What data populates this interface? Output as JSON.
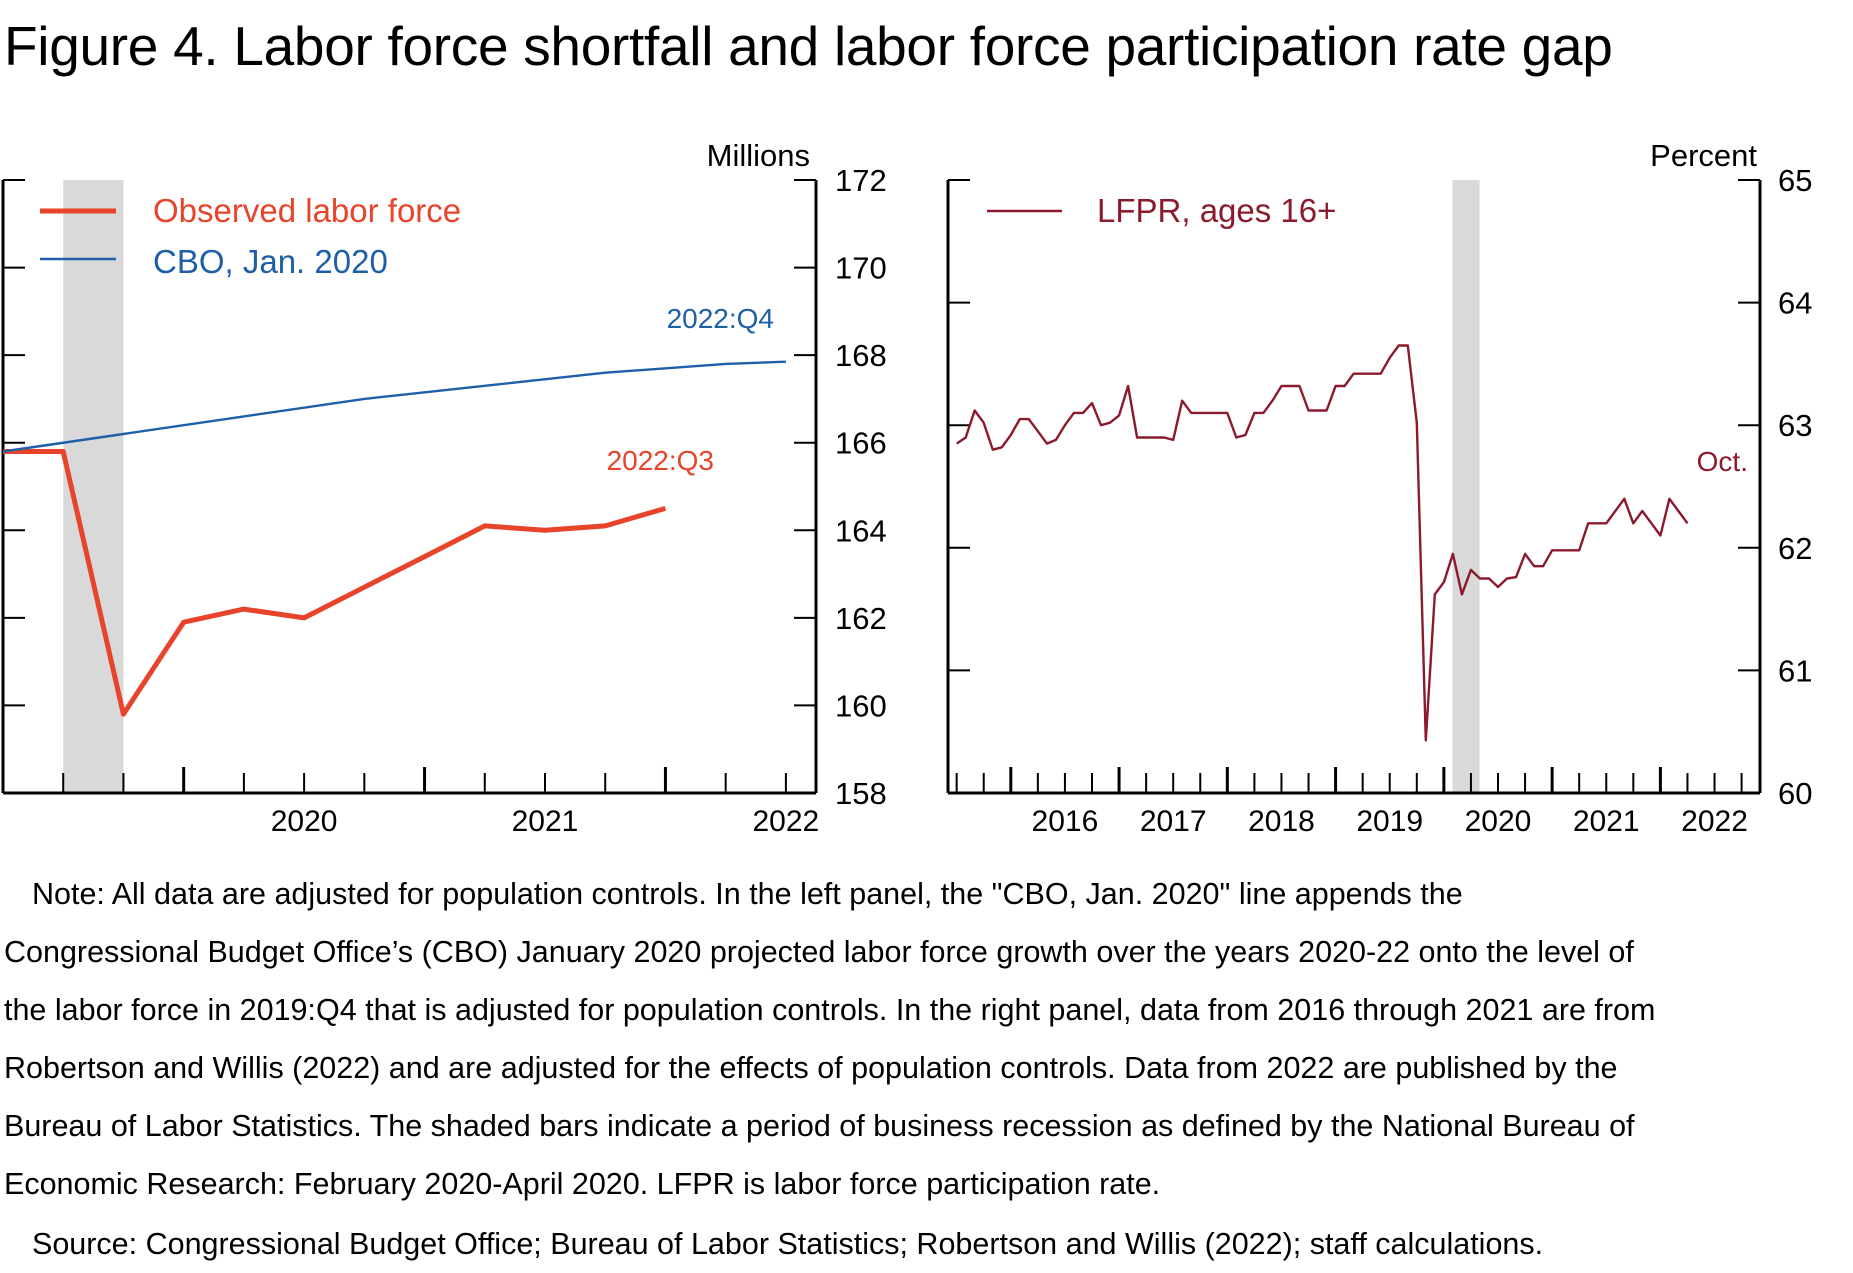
{
  "title": "Figure 4. Labor force shortfall and labor force participation rate gap",
  "chart_data": [
    {
      "type": "line",
      "panel": "left",
      "ylabel": "Millions",
      "ylim": [
        158,
        172
      ],
      "yticks": [
        158,
        160,
        162,
        164,
        166,
        168,
        170,
        172
      ],
      "x_range": [
        2019.25,
        2022.625
      ],
      "xticks": [
        2020,
        2021,
        2022
      ],
      "recession": [
        2019.5,
        2019.75
      ],
      "legend_position": "top-left",
      "series": [
        {
          "name": "Observed labor force",
          "color": "#e8432b",
          "x": [
            2019.25,
            2019.5,
            2019.75,
            2020.0,
            2020.25,
            2020.5,
            2020.75,
            2021.0,
            2021.25,
            2021.5,
            2021.75,
            2022.0
          ],
          "y": [
            165.8,
            165.8,
            159.8,
            161.9,
            162.2,
            162.0,
            162.7,
            163.4,
            164.1,
            164.0,
            164.1,
            164.5
          ]
        },
        {
          "name": "CBO, Jan. 2020",
          "color": "#1f5fa8",
          "x": [
            2019.25,
            2019.75,
            2020.25,
            2020.75,
            2021.25,
            2021.75,
            2022.25,
            2022.5
          ],
          "y": [
            165.8,
            166.2,
            166.6,
            167.0,
            167.3,
            167.6,
            167.8,
            167.85
          ]
        }
      ],
      "annotations": [
        {
          "text": "2022:Q4",
          "series": "CBO, Jan. 2020",
          "color": "#1f5fa8"
        },
        {
          "text": "2022:Q3",
          "series": "Observed labor force",
          "color": "#e8432b"
        }
      ]
    },
    {
      "type": "line",
      "panel": "right",
      "ylabel": "Percent",
      "ylim": [
        60,
        65
      ],
      "yticks": [
        60,
        61,
        62,
        63,
        64,
        65
      ],
      "x_range": [
        2015.42,
        2022.92
      ],
      "xticks": [
        2016,
        2017,
        2018,
        2019,
        2020,
        2021,
        2022
      ],
      "recession": [
        2020.08,
        2020.33
      ],
      "legend_position": "top-left",
      "series": [
        {
          "name": "LFPR, ages 16+",
          "color": "#8b1a2d",
          "x_start": 2015.5,
          "x_step": 0.083333,
          "y": [
            62.85,
            62.9,
            63.12,
            63.02,
            62.8,
            62.82,
            62.92,
            63.05,
            63.05,
            62.95,
            62.85,
            62.88,
            63.0,
            63.1,
            63.1,
            63.18,
            63.0,
            63.02,
            63.08,
            63.32,
            62.9,
            62.9,
            62.9,
            62.9,
            62.88,
            63.2,
            63.1,
            63.1,
            63.1,
            63.1,
            63.1,
            62.9,
            62.92,
            63.1,
            63.1,
            63.2,
            63.32,
            63.32,
            63.32,
            63.12,
            63.12,
            63.12,
            63.32,
            63.32,
            63.42,
            63.42,
            63.42,
            63.42,
            63.55,
            63.65,
            63.65,
            63.02,
            60.43,
            61.62,
            61.72,
            61.95,
            61.62,
            61.82,
            61.75,
            61.75,
            61.68,
            61.75,
            61.76,
            61.95,
            61.85,
            61.85,
            61.98,
            61.98,
            61.98,
            61.98,
            62.2,
            62.2,
            62.2,
            62.3,
            62.4,
            62.2,
            62.3,
            62.2,
            62.1,
            62.4,
            62.3,
            62.2
          ]
        }
      ],
      "annotations": [
        {
          "text": "Oct.",
          "series": "LFPR, ages 16+",
          "color": "#8b1a2d"
        }
      ]
    }
  ],
  "notes": {
    "lines": [
      "Note: All data are adjusted for population controls. In the left panel, the \"CBO, Jan. 2020\" line appends the",
      "Congressional Budget Office’s (CBO) January 2020 projected labor force growth over the years 2020-22 onto the level of",
      "the labor force in 2019:Q4 that is adjusted for population controls. In the right panel, data from 2016 through 2021 are from",
      "Robertson and Willis (2022) and are adjusted for the effects of population controls. Data from 2022 are published by the",
      "Bureau of Labor Statistics. The shaded bars indicate a period of business recession as defined by the National Bureau of",
      "Economic Research: February 2020-April 2020. LFPR is labor force participation rate."
    ],
    "source": "Source: Congressional Budget Office; Bureau of Labor Statistics; Robertson and Willis (2022); staff calculations."
  }
}
